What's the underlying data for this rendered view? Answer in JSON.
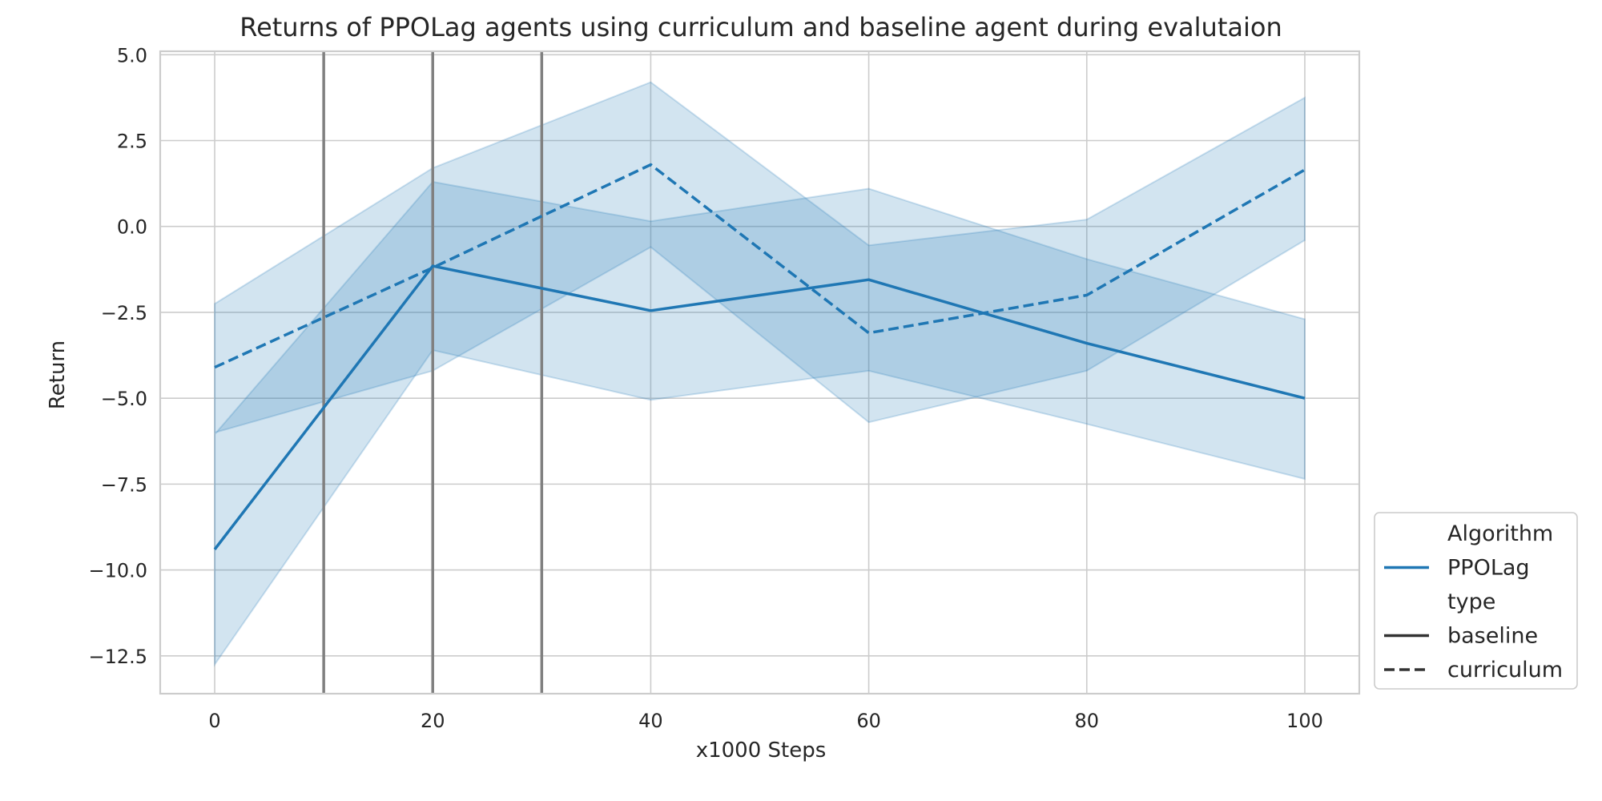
{
  "chart_data": {
    "type": "line",
    "title": "Returns of PPOLag agents using curriculum and baseline agent during evalutaion",
    "xlabel": "x1000 Steps",
    "ylabel": "Return",
    "xlim": [
      -5,
      105
    ],
    "ylim": [
      -13.6,
      5.1
    ],
    "xticks": [
      0,
      20,
      40,
      60,
      80,
      100
    ],
    "xtick_labels": [
      "0",
      "20",
      "40",
      "60",
      "80",
      "100"
    ],
    "yticks": [
      5.0,
      2.5,
      0.0,
      -2.5,
      -5.0,
      -7.5,
      -10.0,
      -12.5
    ],
    "ytick_labels": [
      "5.0",
      "2.5",
      "0.0",
      "−2.5",
      "−5.0",
      "−7.5",
      "−10.0",
      "−12.5"
    ],
    "grid": true,
    "vlines": [
      10,
      20,
      30
    ],
    "series": [
      {
        "algorithm": "PPOLag",
        "type": "baseline",
        "x": [
          0,
          20,
          40,
          60,
          80,
          100
        ],
        "y": [
          -9.4,
          -1.15,
          -2.45,
          -1.55,
          -3.4,
          -5.0
        ],
        "lower": [
          -12.75,
          -3.6,
          -5.05,
          -4.2,
          -5.75,
          -7.35
        ],
        "upper": [
          -6.05,
          1.3,
          0.15,
          1.1,
          -0.95,
          -2.7
        ]
      },
      {
        "algorithm": "PPOLag",
        "type": "curriculum",
        "x": [
          0,
          20,
          40,
          60,
          80,
          100
        ],
        "y": [
          -4.1,
          -1.2,
          1.8,
          -3.1,
          -2.0,
          1.65
        ],
        "lower": [
          -6.0,
          -4.2,
          -0.6,
          -5.7,
          -4.2,
          -0.4
        ],
        "upper": [
          -2.25,
          1.7,
          4.2,
          -0.55,
          0.2,
          3.75
        ]
      }
    ],
    "legend": {
      "position": "lower-right-outside",
      "entries": [
        {
          "label": "Algorithm",
          "style": "header"
        },
        {
          "label": "PPOLag",
          "style": "solid",
          "color": "#1f77b4"
        },
        {
          "label": "type",
          "style": "header"
        },
        {
          "label": "baseline",
          "style": "solid",
          "color": "#333333"
        },
        {
          "label": "curriculum",
          "style": "dashed",
          "color": "#333333"
        }
      ]
    },
    "colors": {
      "line": "#1f77b4",
      "band": "#1f77b4",
      "grid": "#cccccc",
      "vline": "#808080",
      "frame": "#cccccc"
    }
  }
}
